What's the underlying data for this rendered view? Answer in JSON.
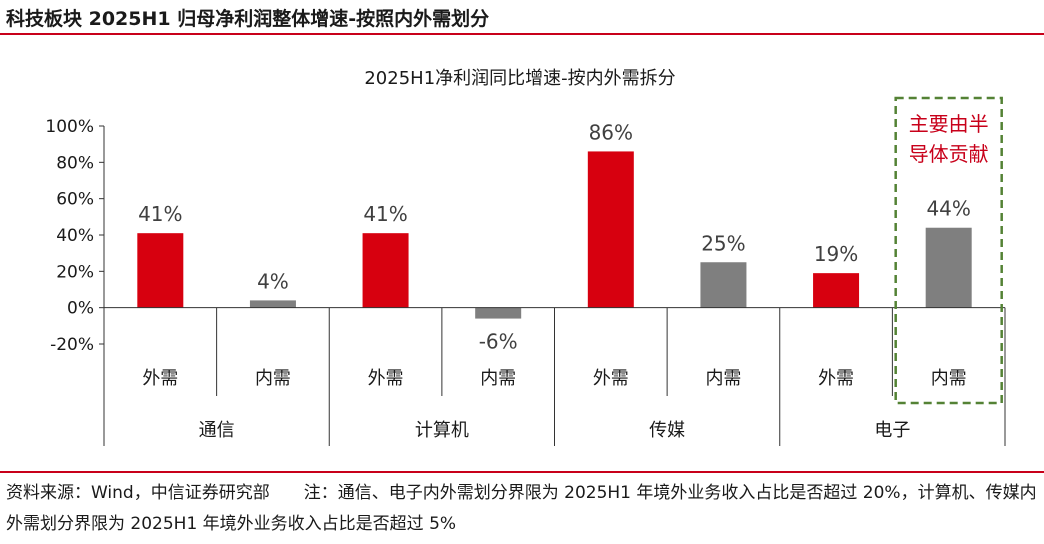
{
  "header": {
    "title": "科技板块 2025H1 归母净利润整体增速-按照内外需划分"
  },
  "footer": {
    "note": "资料来源：Wind，中信证券研究部　　注：通信、电子内外需划分界限为 2025H1 年境外业务收入占比是否超过 20%，计算机、传媒内外需划分界限为 2025H1 年境外业务收入占比是否超过 5%"
  },
  "chart_data": {
    "type": "bar",
    "title": "2025H1净利润同比增速-按内外需拆分",
    "groups": [
      "通信",
      "计算机",
      "传媒",
      "电子"
    ],
    "categories": [
      "外需",
      "内需",
      "外需",
      "内需",
      "外需",
      "内需",
      "外需",
      "内需"
    ],
    "values": [
      41,
      4,
      41,
      -6,
      86,
      25,
      19,
      44
    ],
    "value_labels": [
      "41%",
      "4%",
      "41%",
      "-6%",
      "86%",
      "25%",
      "19%",
      "44%"
    ],
    "colors": {
      "外需": "#d7000f",
      "内需": "#7f7f7f"
    },
    "ylim": [
      -20,
      100
    ],
    "yticks": [
      100,
      80,
      60,
      40,
      20,
      0,
      -20
    ],
    "ytick_labels": [
      "100%",
      "80%",
      "60%",
      "40%",
      "20%",
      "0%",
      "-20%"
    ],
    "annotation": {
      "lines": [
        "主要由半",
        "导体贡献"
      ],
      "color": "#c8001a",
      "box_color": "#548235",
      "target_index": 7
    },
    "grid": false
  }
}
